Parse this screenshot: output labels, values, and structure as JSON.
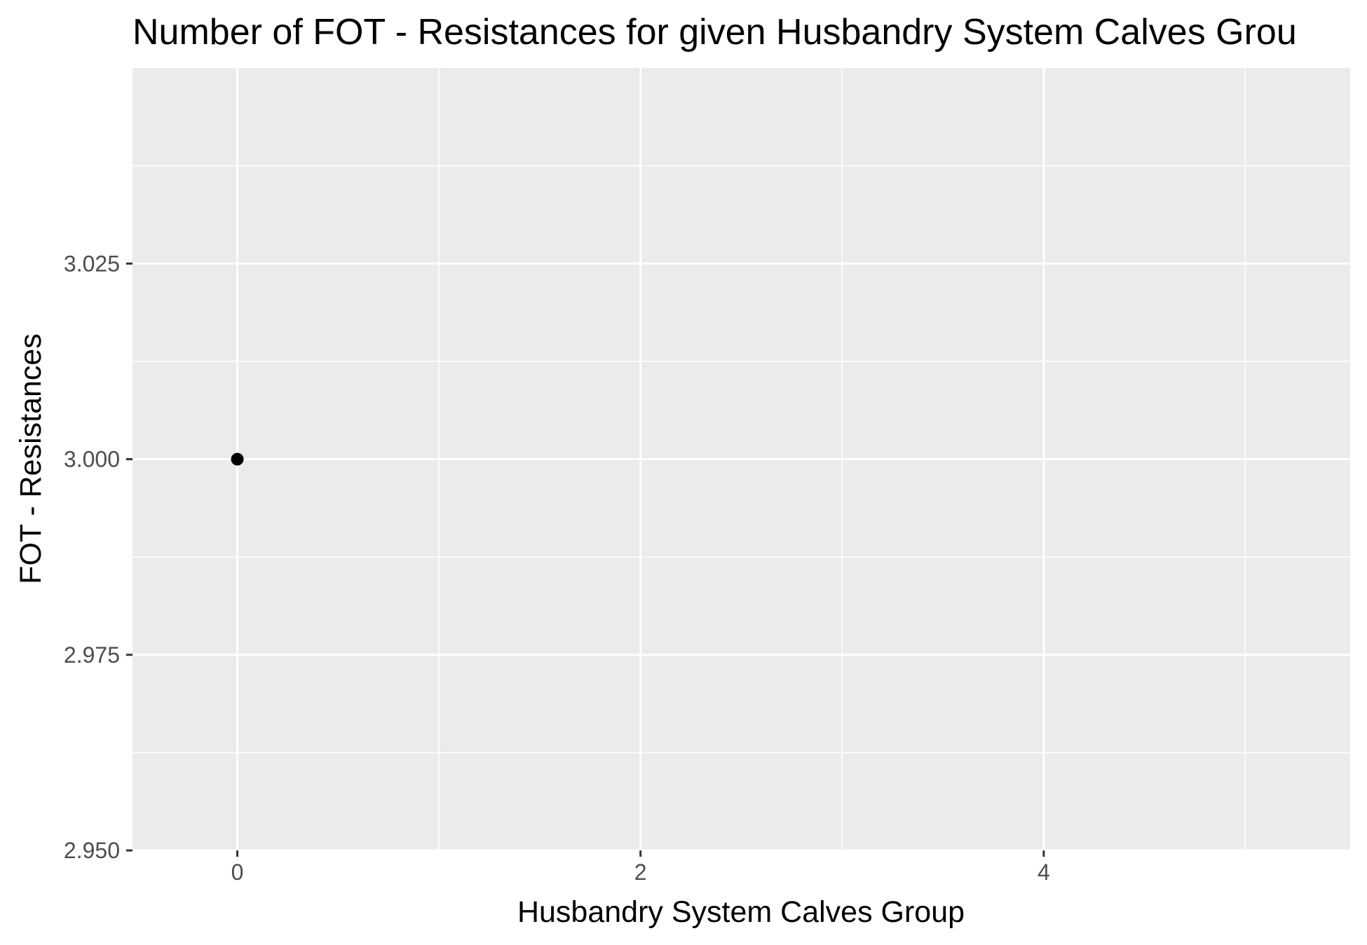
{
  "chart_data": {
    "type": "scatter",
    "title": "Number of FOT - Resistances for given Husbandry System Calves Grou",
    "xlabel": "Husbandry System Calves Group",
    "ylabel": "FOT - Resistances",
    "xlim": [
      -0.52,
      5.52
    ],
    "ylim": [
      2.95,
      3.05
    ],
    "x_ticks": [
      0,
      2,
      4
    ],
    "x_tick_labels": [
      "0",
      "2",
      "4"
    ],
    "x_minor_ticks": [
      1,
      3,
      5
    ],
    "y_ticks": [
      2.95,
      2.975,
      3.0,
      3.025
    ],
    "y_tick_labels": [
      "2.950",
      "2.975",
      "3.000",
      "3.025"
    ],
    "y_minor_ticks": [
      2.9625,
      2.9875,
      3.0125,
      3.0375
    ],
    "grid": true,
    "panel_background": "#ebebeb",
    "grid_color": "#ffffff",
    "point_color": "#000000",
    "series": [
      {
        "x": [
          0
        ],
        "y": [
          3.0
        ]
      }
    ]
  }
}
